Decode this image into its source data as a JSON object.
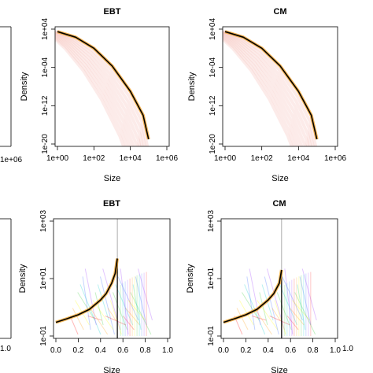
{
  "colors": {
    "main_line": "#000000",
    "highlight": "#f0a020",
    "shade": "#f5c6c0",
    "spectrum": [
      "#ff0000",
      "#ff9900",
      "#ffff00",
      "#33cc33",
      "#00cccc",
      "#3366ff",
      "#9933ff"
    ]
  },
  "chart_data": [
    {
      "type": "line",
      "title": "EBT",
      "xlabel": "Size",
      "ylabel": "Density",
      "x_scale": "log10",
      "y_scale": "log10",
      "x_ticks": [
        "1e+00",
        "1e+02",
        "1e+04",
        "1e+06"
      ],
      "y_ticks": [
        "1e+04",
        "1e-04",
        "1e-12",
        "1e-20"
      ],
      "xlim": [
        1,
        1000000
      ],
      "ylim": [
        1e-20,
        10000
      ],
      "series": [
        {
          "x": [
            1,
            10,
            100,
            1000,
            10000,
            50000,
            100000
          ],
          "y": [
            3000.0,
            200.0,
            1.0,
            0.0002,
            1e-09,
            1e-14,
            1e-19
          ]
        }
      ]
    },
    {
      "type": "line",
      "title": "CM",
      "xlabel": "Size",
      "ylabel": "Density",
      "x_scale": "log10",
      "y_scale": "log10",
      "x_ticks": [
        "1e+00",
        "1e+02",
        "1e+04",
        "1e+06"
      ],
      "y_ticks": [
        "1e+04",
        "1e-04",
        "1e-12",
        "1e-20"
      ],
      "xlim": [
        1,
        1000000
      ],
      "ylim": [
        1e-20,
        10000
      ],
      "series": [
        {
          "x": [
            1,
            10,
            100,
            1000,
            10000,
            50000,
            100000
          ],
          "y": [
            3000.0,
            200.0,
            1.0,
            0.0002,
            1e-09,
            1e-14,
            1e-19
          ]
        }
      ]
    },
    {
      "type": "line",
      "title": "EBT",
      "xlabel": "Size",
      "ylabel": "Density",
      "x_scale": "linear",
      "y_scale": "log10",
      "x_ticks": [
        "0.0",
        "0.2",
        "0.4",
        "0.6",
        "0.8",
        "1.0"
      ],
      "y_ticks": [
        "1e-01",
        "1e+01",
        "1e+03"
      ],
      "xlim": [
        0,
        1
      ],
      "ylim": [
        0.1,
        1000
      ],
      "vline": 0.55,
      "series": [
        {
          "x": [
            0.0,
            0.1,
            0.2,
            0.3,
            0.4,
            0.45,
            0.5,
            0.53,
            0.55
          ],
          "y": [
            0.3,
            0.4,
            0.55,
            0.85,
            1.8,
            3.0,
            7.0,
            15.0,
            50.0
          ]
        }
      ]
    },
    {
      "type": "line",
      "title": "CM",
      "xlabel": "Size",
      "ylabel": "Density",
      "x_scale": "linear",
      "y_scale": "log10",
      "x_ticks": [
        "0.0",
        "0.2",
        "0.4",
        "0.6",
        "0.8",
        "1.0"
      ],
      "y_ticks": [
        "1e-01",
        "1e+01",
        "1e+03"
      ],
      "xlim": [
        0,
        1
      ],
      "ylim": [
        0.1,
        1000
      ],
      "vline": 0.52,
      "series": [
        {
          "x": [
            0.0,
            0.1,
            0.2,
            0.3,
            0.4,
            0.45,
            0.5,
            0.52
          ],
          "y": [
            0.3,
            0.4,
            0.55,
            0.85,
            1.8,
            3.0,
            7.0,
            20.0
          ]
        }
      ]
    }
  ],
  "partial_panels": {
    "left_top_tick": "1e+06",
    "left_bottom_tick": "1.0",
    "right_bottom_tick": "1.0"
  }
}
